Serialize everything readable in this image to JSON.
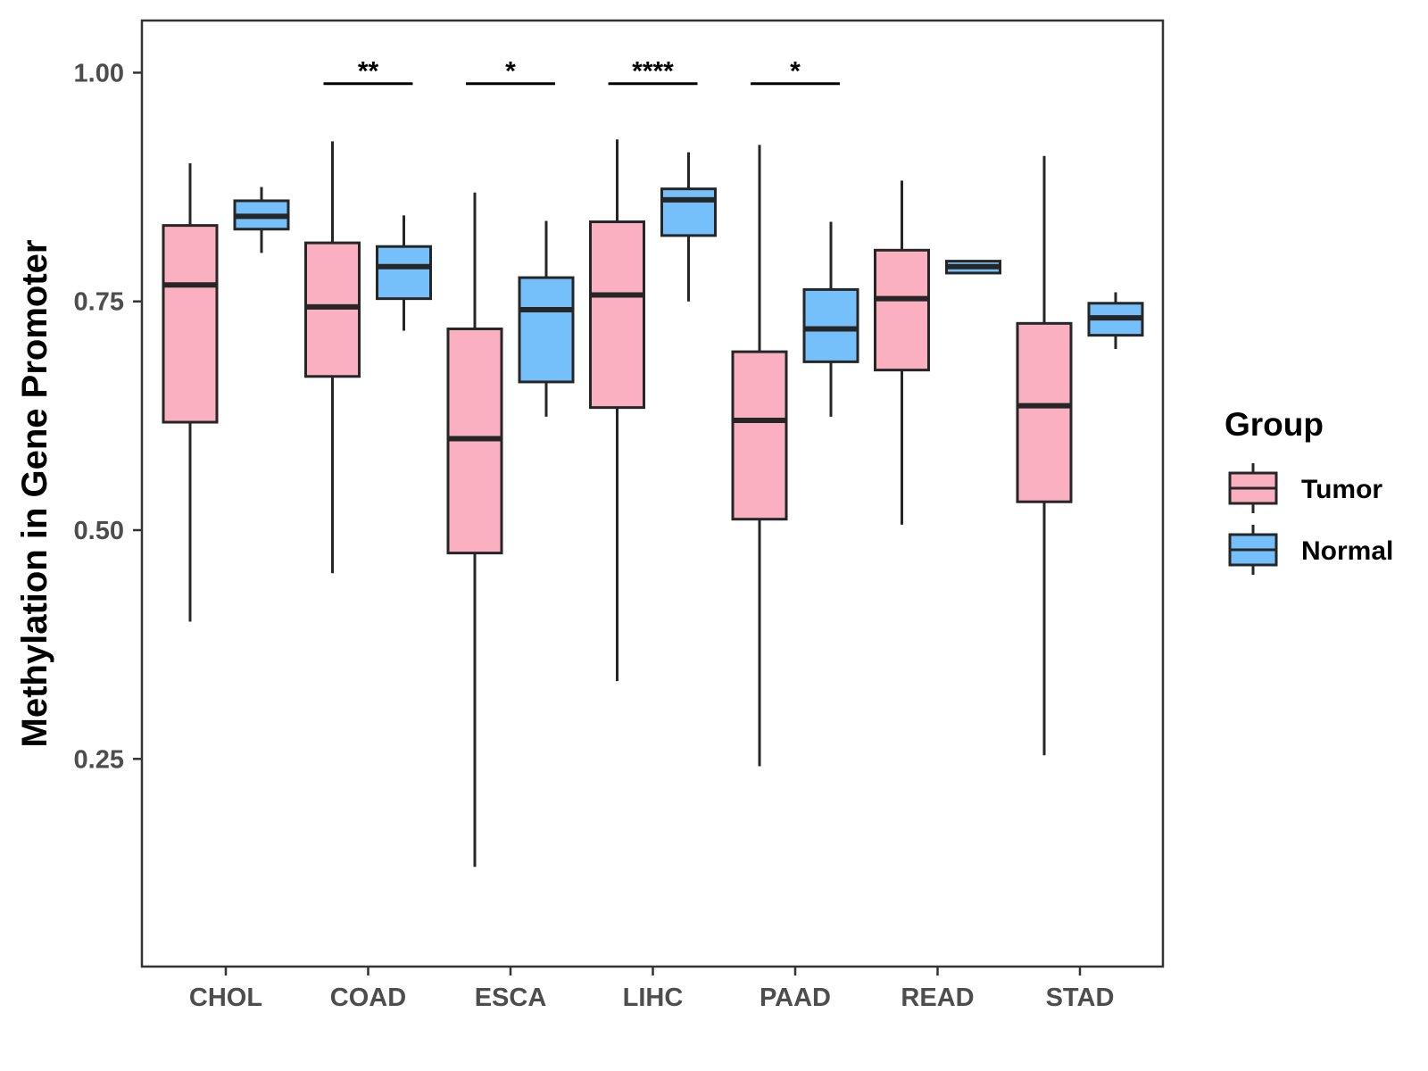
{
  "chart_data": {
    "type": "boxplot",
    "title": "",
    "xlabel": "",
    "ylabel": "Methylation in Gene Promoter",
    "ylim": [
      0.023,
      1.057
    ],
    "y_ticks": [
      "0.25",
      "0.50",
      "0.75",
      "1.00"
    ],
    "y_tick_values": [
      0.25,
      0.5,
      0.75,
      1.0
    ],
    "categories": [
      "CHOL",
      "COAD",
      "ESCA",
      "LIHC",
      "PAAD",
      "READ",
      "STAD"
    ],
    "legend": {
      "title": "Group",
      "position": "right",
      "entries": [
        {
          "name": "Tumor",
          "color": "#fbb0c1"
        },
        {
          "name": "Normal",
          "color": "#75c0fa"
        }
      ]
    },
    "series": [
      {
        "name": "Tumor",
        "color": "#fbb0c1",
        "boxes": [
          {
            "min": 0.4,
            "q1": 0.618,
            "median": 0.768,
            "q3": 0.833,
            "max": 0.901
          },
          {
            "min": 0.453,
            "q1": 0.668,
            "median": 0.744,
            "q3": 0.814,
            "max": 0.925
          },
          {
            "min": 0.132,
            "q1": 0.475,
            "median": 0.6,
            "q3": 0.72,
            "max": 0.869
          },
          {
            "min": 0.335,
            "q1": 0.634,
            "median": 0.757,
            "q3": 0.837,
            "max": 0.927
          },
          {
            "min": 0.242,
            "q1": 0.512,
            "median": 0.62,
            "q3": 0.695,
            "max": 0.921
          },
          {
            "min": 0.506,
            "q1": 0.675,
            "median": 0.753,
            "q3": 0.806,
            "max": 0.882
          },
          {
            "min": 0.254,
            "q1": 0.531,
            "median": 0.636,
            "q3": 0.726,
            "max": 0.909
          }
        ]
      },
      {
        "name": "Normal",
        "color": "#75c0fa",
        "boxes": [
          {
            "min": 0.803,
            "q1": 0.829,
            "median": 0.843,
            "q3": 0.86,
            "max": 0.875
          },
          {
            "min": 0.718,
            "q1": 0.753,
            "median": 0.788,
            "q3": 0.81,
            "max": 0.844
          },
          {
            "min": 0.624,
            "q1": 0.662,
            "median": 0.741,
            "q3": 0.776,
            "max": 0.838
          },
          {
            "min": 0.75,
            "q1": 0.822,
            "median": 0.861,
            "q3": 0.873,
            "max": 0.913
          },
          {
            "min": 0.624,
            "q1": 0.684,
            "median": 0.72,
            "q3": 0.763,
            "max": 0.837
          },
          {
            "min": 0.781,
            "q1": 0.781,
            "median": 0.788,
            "q3": 0.794,
            "max": 0.794
          },
          {
            "min": 0.698,
            "q1": 0.713,
            "median": 0.732,
            "q3": 0.748,
            "max": 0.76
          }
        ]
      }
    ],
    "significance": [
      {
        "category": "COAD",
        "label": "**"
      },
      {
        "category": "ESCA",
        "label": "*"
      },
      {
        "category": "LIHC",
        "label": "****"
      },
      {
        "category": "PAAD",
        "label": "*"
      }
    ],
    "significance_y": 0.988,
    "grid": false
  }
}
